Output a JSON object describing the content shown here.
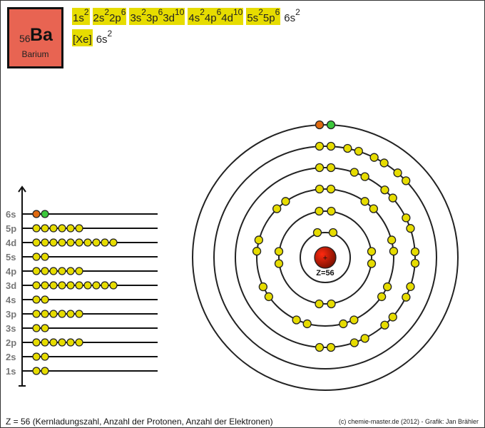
{
  "element": {
    "atomic_number": "56",
    "symbol": "Ba",
    "name": "Barium",
    "box_color": "#e86452"
  },
  "configuration_full": [
    {
      "terms": [
        [
          "1s",
          "2"
        ]
      ],
      "highlight": true
    },
    {
      "terms": [
        [
          "2s",
          "2"
        ],
        [
          "2p",
          "6"
        ]
      ],
      "highlight": true
    },
    {
      "terms": [
        [
          "3s",
          "2"
        ],
        [
          "3p",
          "6"
        ],
        [
          "3d",
          "10"
        ]
      ],
      "highlight": true
    },
    {
      "terms": [
        [
          "4s",
          "2"
        ],
        [
          "4p",
          "6"
        ],
        [
          "4d",
          "10"
        ]
      ],
      "highlight": true
    },
    {
      "terms": [
        [
          "5s",
          "2"
        ],
        [
          "5p",
          "6"
        ]
      ],
      "highlight": true
    },
    {
      "terms": [
        [
          "6s",
          "2"
        ]
      ],
      "highlight": false
    }
  ],
  "configuration_short": [
    {
      "terms": [
        [
          "[Xe]",
          ""
        ]
      ],
      "highlight": true
    },
    {
      "terms": [
        [
          "6s",
          "2"
        ]
      ],
      "highlight": false
    }
  ],
  "energy_levels": [
    {
      "label": "6s",
      "electrons": 2,
      "colors": [
        "#e06a10",
        "#3cc83c"
      ]
    },
    {
      "label": "5p",
      "electrons": 6
    },
    {
      "label": "4d",
      "electrons": 10
    },
    {
      "label": "5s",
      "electrons": 2
    },
    {
      "label": "4p",
      "electrons": 6
    },
    {
      "label": "3d",
      "electrons": 10
    },
    {
      "label": "4s",
      "electrons": 2
    },
    {
      "label": "3p",
      "electrons": 6
    },
    {
      "label": "3s",
      "electrons": 2
    },
    {
      "label": "2p",
      "electrons": 6
    },
    {
      "label": "2s",
      "electrons": 2
    },
    {
      "label": "1s",
      "electrons": 2
    }
  ],
  "shells": [
    2,
    8,
    18,
    18,
    8,
    2
  ],
  "nucleus_label": "Z=56",
  "nucleus_sign": "+",
  "colors": {
    "electron": "#e6dc00",
    "outer_electron_1": "#e06a10",
    "outer_electron_2": "#3cc83c",
    "nucleus": "#b01800",
    "highlight": "#e6dc00",
    "level_label": "#777777"
  },
  "footer": {
    "left": "Z = 56  (Kernladungszahl, Anzahl der Protonen, Anzahl der Elektronen)",
    "right": "(c) chemie-master.de (2012) - Grafik: Jan Brähler"
  }
}
